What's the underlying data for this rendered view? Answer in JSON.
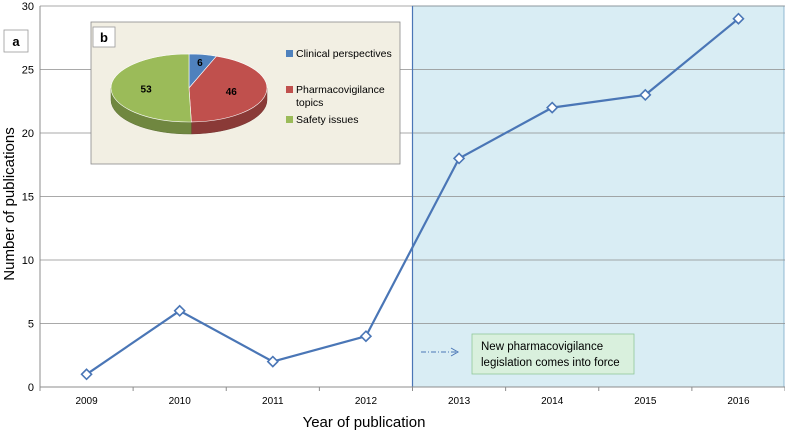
{
  "chart_data": [
    {
      "panel_label": "a",
      "type": "line",
      "xlabel": "Year of publication",
      "ylabel": "Number  of publications",
      "categories": [
        "2009",
        "2010",
        "2011",
        "2012",
        "2013",
        "2014",
        "2015",
        "2016"
      ],
      "series": [
        {
          "values": [
            1,
            6,
            2,
            4,
            18,
            22,
            23,
            29
          ]
        }
      ],
      "ylim": [
        0,
        30
      ],
      "yticks": [
        "0",
        "5",
        "10",
        "15",
        "20",
        "25",
        "30"
      ],
      "grid": true,
      "annotation": {
        "text_line1": "New pharmacovigilance",
        "text_line2": "legislation comes into force",
        "boundary_between": [
          "2012",
          "2013"
        ],
        "shaded_region": "2013 onward"
      },
      "colors": {
        "line": "#4a76b6",
        "shade": "#d9edf4",
        "note_fill": "#d9f0dd",
        "note_border": "#8fc89a"
      }
    },
    {
      "panel_label": "b",
      "type": "pie",
      "slices": [
        {
          "label": "Clinical perspectives",
          "label_line1": "Clinical perspectives",
          "label_line2": "",
          "value": 6,
          "color": "#4f81bd"
        },
        {
          "label": "Pharmacovigilance topics",
          "label_line1": "Pharmacovigilance",
          "label_line2": "topics",
          "value": 46,
          "color": "#c0504d"
        },
        {
          "label": "Safety issues",
          "label_line1": "Safety issues",
          "label_line2": "",
          "value": 53,
          "color": "#9bbb59"
        }
      ],
      "legend_position": "right",
      "background": "#f2efe3"
    }
  ]
}
